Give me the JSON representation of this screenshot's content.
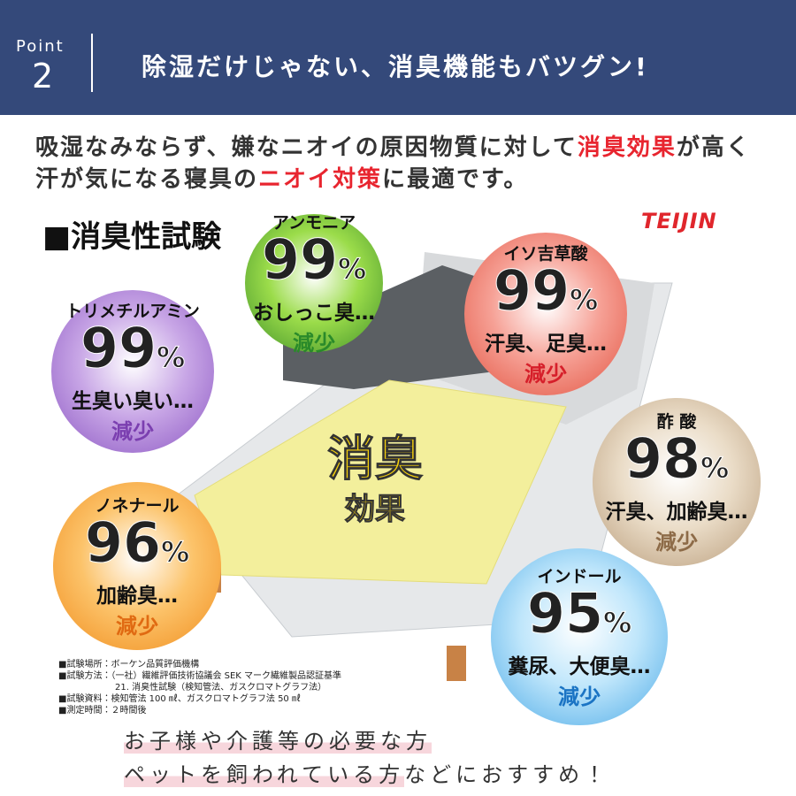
{
  "header": {
    "point_label": "Point",
    "point_number": "2",
    "title": "除湿だけじゃない、消臭機能もバツグン!"
  },
  "intro": {
    "line1": [
      "吸湿なみならず、嫌なニオイの原因物質に対して",
      "消臭効果",
      "が高く"
    ],
    "line2": [
      "汗が気になる寝具の",
      "ニオイ対策",
      "に最適です。"
    ]
  },
  "section_title": "■消臭性試験",
  "brand": "TEIJIN",
  "center": {
    "line1": "消臭",
    "line2": "効果"
  },
  "tests": [
    {
      "name": "アンモニア",
      "percent": "99",
      "unit": "%",
      "odor": "おしっこ臭…",
      "result": "減少"
    },
    {
      "name": "イソ吉草酸",
      "percent": "99",
      "unit": "%",
      "odor": "汗臭、足臭…",
      "result": "減少"
    },
    {
      "name": "トリメチルアミン",
      "percent": "99",
      "unit": "%",
      "odor": "生臭い臭い…",
      "result": "減少"
    },
    {
      "name": "酢 酸",
      "percent": "98",
      "unit": "%",
      "odor": "汗臭、加齢臭…",
      "result": "減少"
    },
    {
      "name": "ノネナール",
      "percent": "96",
      "unit": "%",
      "odor": "加齢臭…",
      "result": "減少"
    },
    {
      "name": "インドール",
      "percent": "95",
      "unit": "%",
      "odor": "糞尿、大便臭…",
      "result": "減少"
    }
  ],
  "notes": [
    "■試験場所：ボーケン品質評価機構",
    "■試験方法：（一社）繊維評価技術協議会 SEK マーク繊維製品認証基準",
    "21. 消臭性試験（検知管法、ガスクロマトグラフ法）",
    "■試験資料：検知管法 100 ㎖、ガスクロマトグラフ法 50 ㎖",
    "■測定時間：２時間後"
  ],
  "footer": {
    "line1": "お子様や介護等の必要な方",
    "line2": [
      "ペットを飼われている方",
      "などにおすすめ！"
    ]
  }
}
